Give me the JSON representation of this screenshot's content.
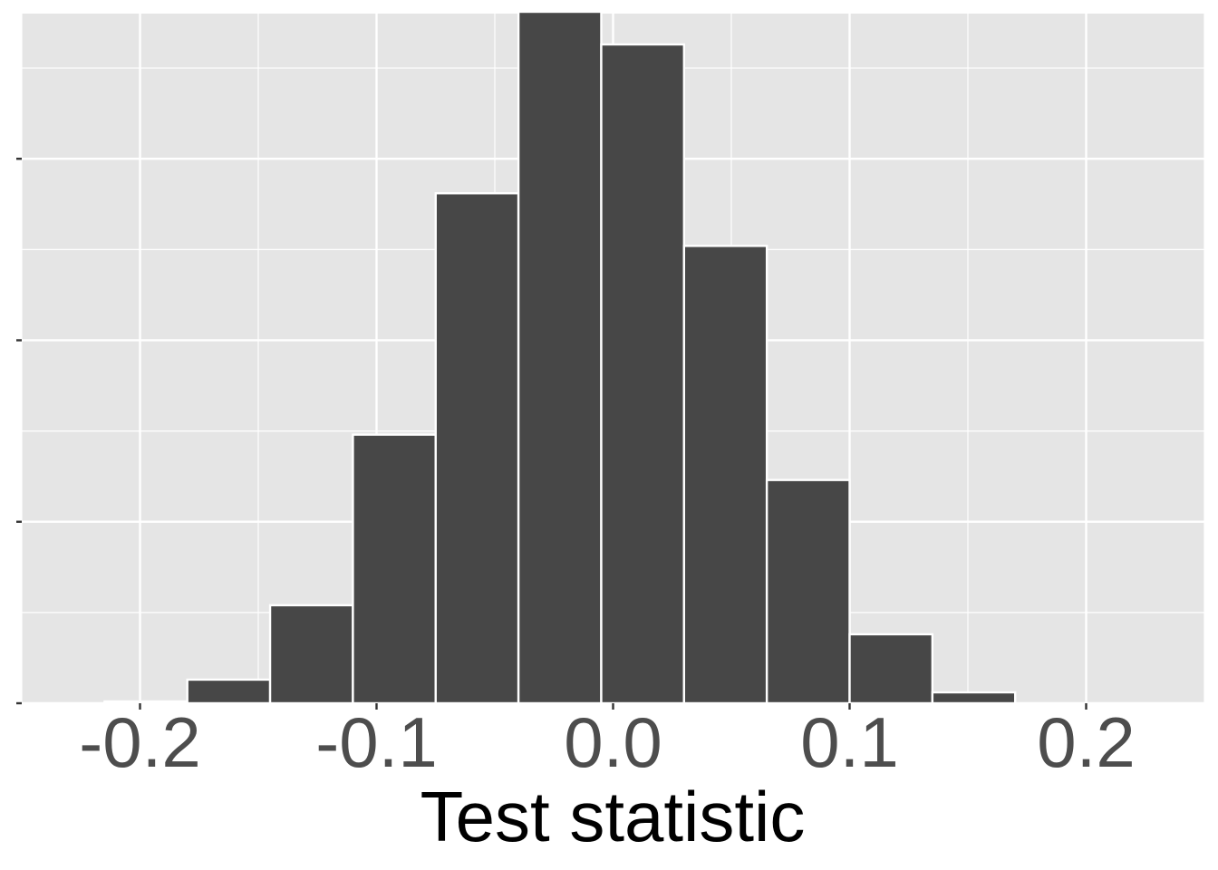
{
  "chart_data": {
    "type": "bar",
    "title": "",
    "xlabel": "Test statistic",
    "ylabel": "",
    "xlim": [
      -0.25,
      0.25
    ],
    "ylim": [
      0,
      380
    ],
    "x_ticks": [
      -0.2,
      -0.1,
      0.0,
      0.1,
      0.2
    ],
    "x_tick_labels": [
      "-0.2",
      "-0.1",
      "0.0",
      "0.1",
      "0.2"
    ],
    "y_ticks": [
      0,
      100,
      200,
      300
    ],
    "y_tick_labels_shown": false,
    "grid": true,
    "bin_width": 0.035,
    "bins": [
      {
        "x0": -0.215,
        "x1": -0.18,
        "count": 1
      },
      {
        "x0": -0.18,
        "x1": -0.145,
        "count": 13
      },
      {
        "x0": -0.145,
        "x1": -0.11,
        "count": 54
      },
      {
        "x0": -0.11,
        "x1": -0.075,
        "count": 148
      },
      {
        "x0": -0.075,
        "x1": -0.04,
        "count": 281
      },
      {
        "x0": -0.04,
        "x1": -0.005,
        "count": 381
      },
      {
        "x0": -0.005,
        "x1": 0.03,
        "count": 363
      },
      {
        "x0": 0.03,
        "x1": 0.065,
        "count": 252
      },
      {
        "x0": 0.065,
        "x1": 0.1,
        "count": 123
      },
      {
        "x0": 0.1,
        "x1": 0.135,
        "count": 38
      },
      {
        "x0": 0.135,
        "x1": 0.17,
        "count": 6
      }
    ]
  },
  "colors": {
    "panel": "#e5e5e5",
    "grid": "#ffffff",
    "bar_fill": "#474747",
    "bar_stroke": "#ffffff"
  }
}
